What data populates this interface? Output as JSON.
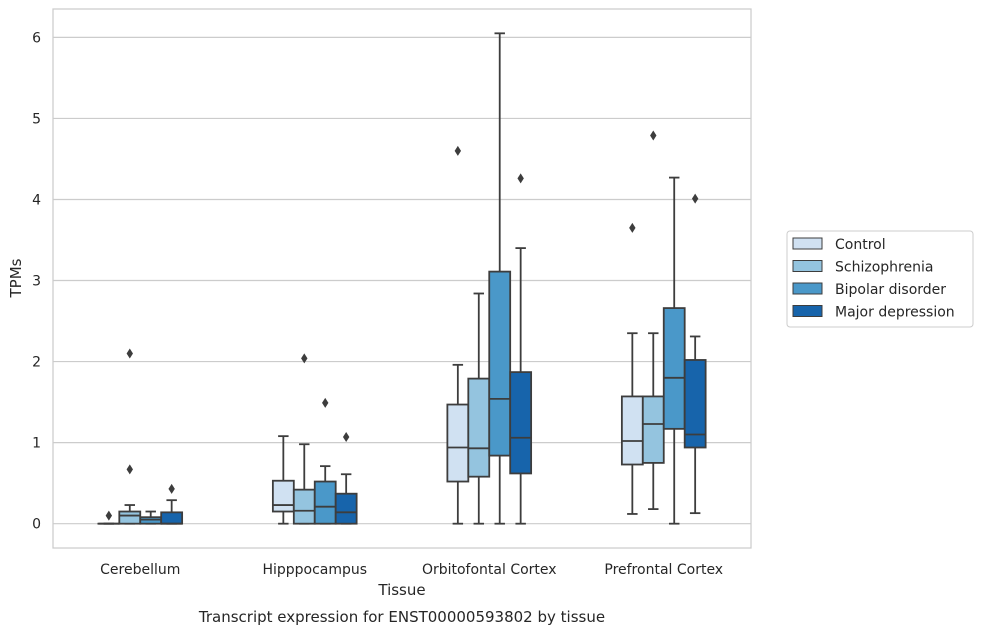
{
  "chart_data": {
    "type": "box",
    "caption": "Transcript expression for ENST00000593802 by tissue",
    "xlabel": "Tissue",
    "ylabel": "TPMs",
    "ylim": [
      -0.3,
      6.35
    ],
    "yticks": [
      "0",
      "1",
      "2",
      "3",
      "4",
      "5",
      "6"
    ],
    "grid": "horizontal",
    "legend_position": "right",
    "categories": [
      "Cerebellum",
      "Hipppocampus",
      "Orbitofontal Cortex",
      "Prefrontal Cortex"
    ],
    "series": [
      {
        "name": "Control",
        "color": "#d0e1f2",
        "boxes": [
          {
            "whislo": 0,
            "q1": 0,
            "med": 0,
            "q3": 0,
            "whishi": 0,
            "fliers": [
              0.1
            ]
          },
          {
            "whislo": 0,
            "q1": 0.15,
            "med": 0.23,
            "q3": 0.53,
            "whishi": 1.08,
            "fliers": []
          },
          {
            "whislo": 0,
            "q1": 0.52,
            "med": 0.94,
            "q3": 1.47,
            "whishi": 1.96,
            "fliers": [
              4.6
            ]
          },
          {
            "whislo": 0.12,
            "q1": 0.73,
            "med": 1.02,
            "q3": 1.57,
            "whishi": 2.35,
            "fliers": [
              3.65
            ]
          }
        ]
      },
      {
        "name": "Schizophrenia",
        "color": "#94c4df",
        "boxes": [
          {
            "whislo": 0,
            "q1": 0,
            "med": 0.1,
            "q3": 0.15,
            "whishi": 0.23,
            "fliers": [
              0.67,
              2.1
            ]
          },
          {
            "whislo": 0,
            "q1": 0,
            "med": 0.16,
            "q3": 0.42,
            "whishi": 0.98,
            "fliers": [
              2.04
            ]
          },
          {
            "whislo": 0,
            "q1": 0.58,
            "med": 0.93,
            "q3": 1.79,
            "whishi": 2.84,
            "fliers": []
          },
          {
            "whislo": 0.18,
            "q1": 0.75,
            "med": 1.23,
            "q3": 1.57,
            "whishi": 2.35,
            "fliers": [
              4.79
            ]
          }
        ]
      },
      {
        "name": "Bipolar disorder",
        "color": "#4a98c9",
        "boxes": [
          {
            "whislo": 0,
            "q1": 0,
            "med": 0.05,
            "q3": 0.08,
            "whishi": 0.15,
            "fliers": []
          },
          {
            "whislo": 0,
            "q1": 0,
            "med": 0.21,
            "q3": 0.52,
            "whishi": 0.71,
            "fliers": [
              1.49
            ]
          },
          {
            "whislo": 0,
            "q1": 0.84,
            "med": 1.54,
            "q3": 3.11,
            "whishi": 6.05,
            "fliers": []
          },
          {
            "whislo": 0,
            "q1": 1.17,
            "med": 1.8,
            "q3": 2.66,
            "whishi": 4.27,
            "fliers": []
          }
        ]
      },
      {
        "name": "Major depression",
        "color": "#1764ab",
        "boxes": [
          {
            "whislo": 0,
            "q1": 0,
            "med": 0,
            "q3": 0.14,
            "whishi": 0.29,
            "fliers": [
              0.43
            ]
          },
          {
            "whislo": 0,
            "q1": 0,
            "med": 0.14,
            "q3": 0.37,
            "whishi": 0.61,
            "fliers": [
              1.07
            ]
          },
          {
            "whislo": 0,
            "q1": 0.62,
            "med": 1.06,
            "q3": 1.87,
            "whishi": 3.4,
            "fliers": [
              4.26
            ]
          },
          {
            "whislo": 0.13,
            "q1": 0.94,
            "med": 1.1,
            "q3": 2.02,
            "whishi": 2.31,
            "fliers": [
              4.01
            ]
          }
        ]
      }
    ]
  }
}
